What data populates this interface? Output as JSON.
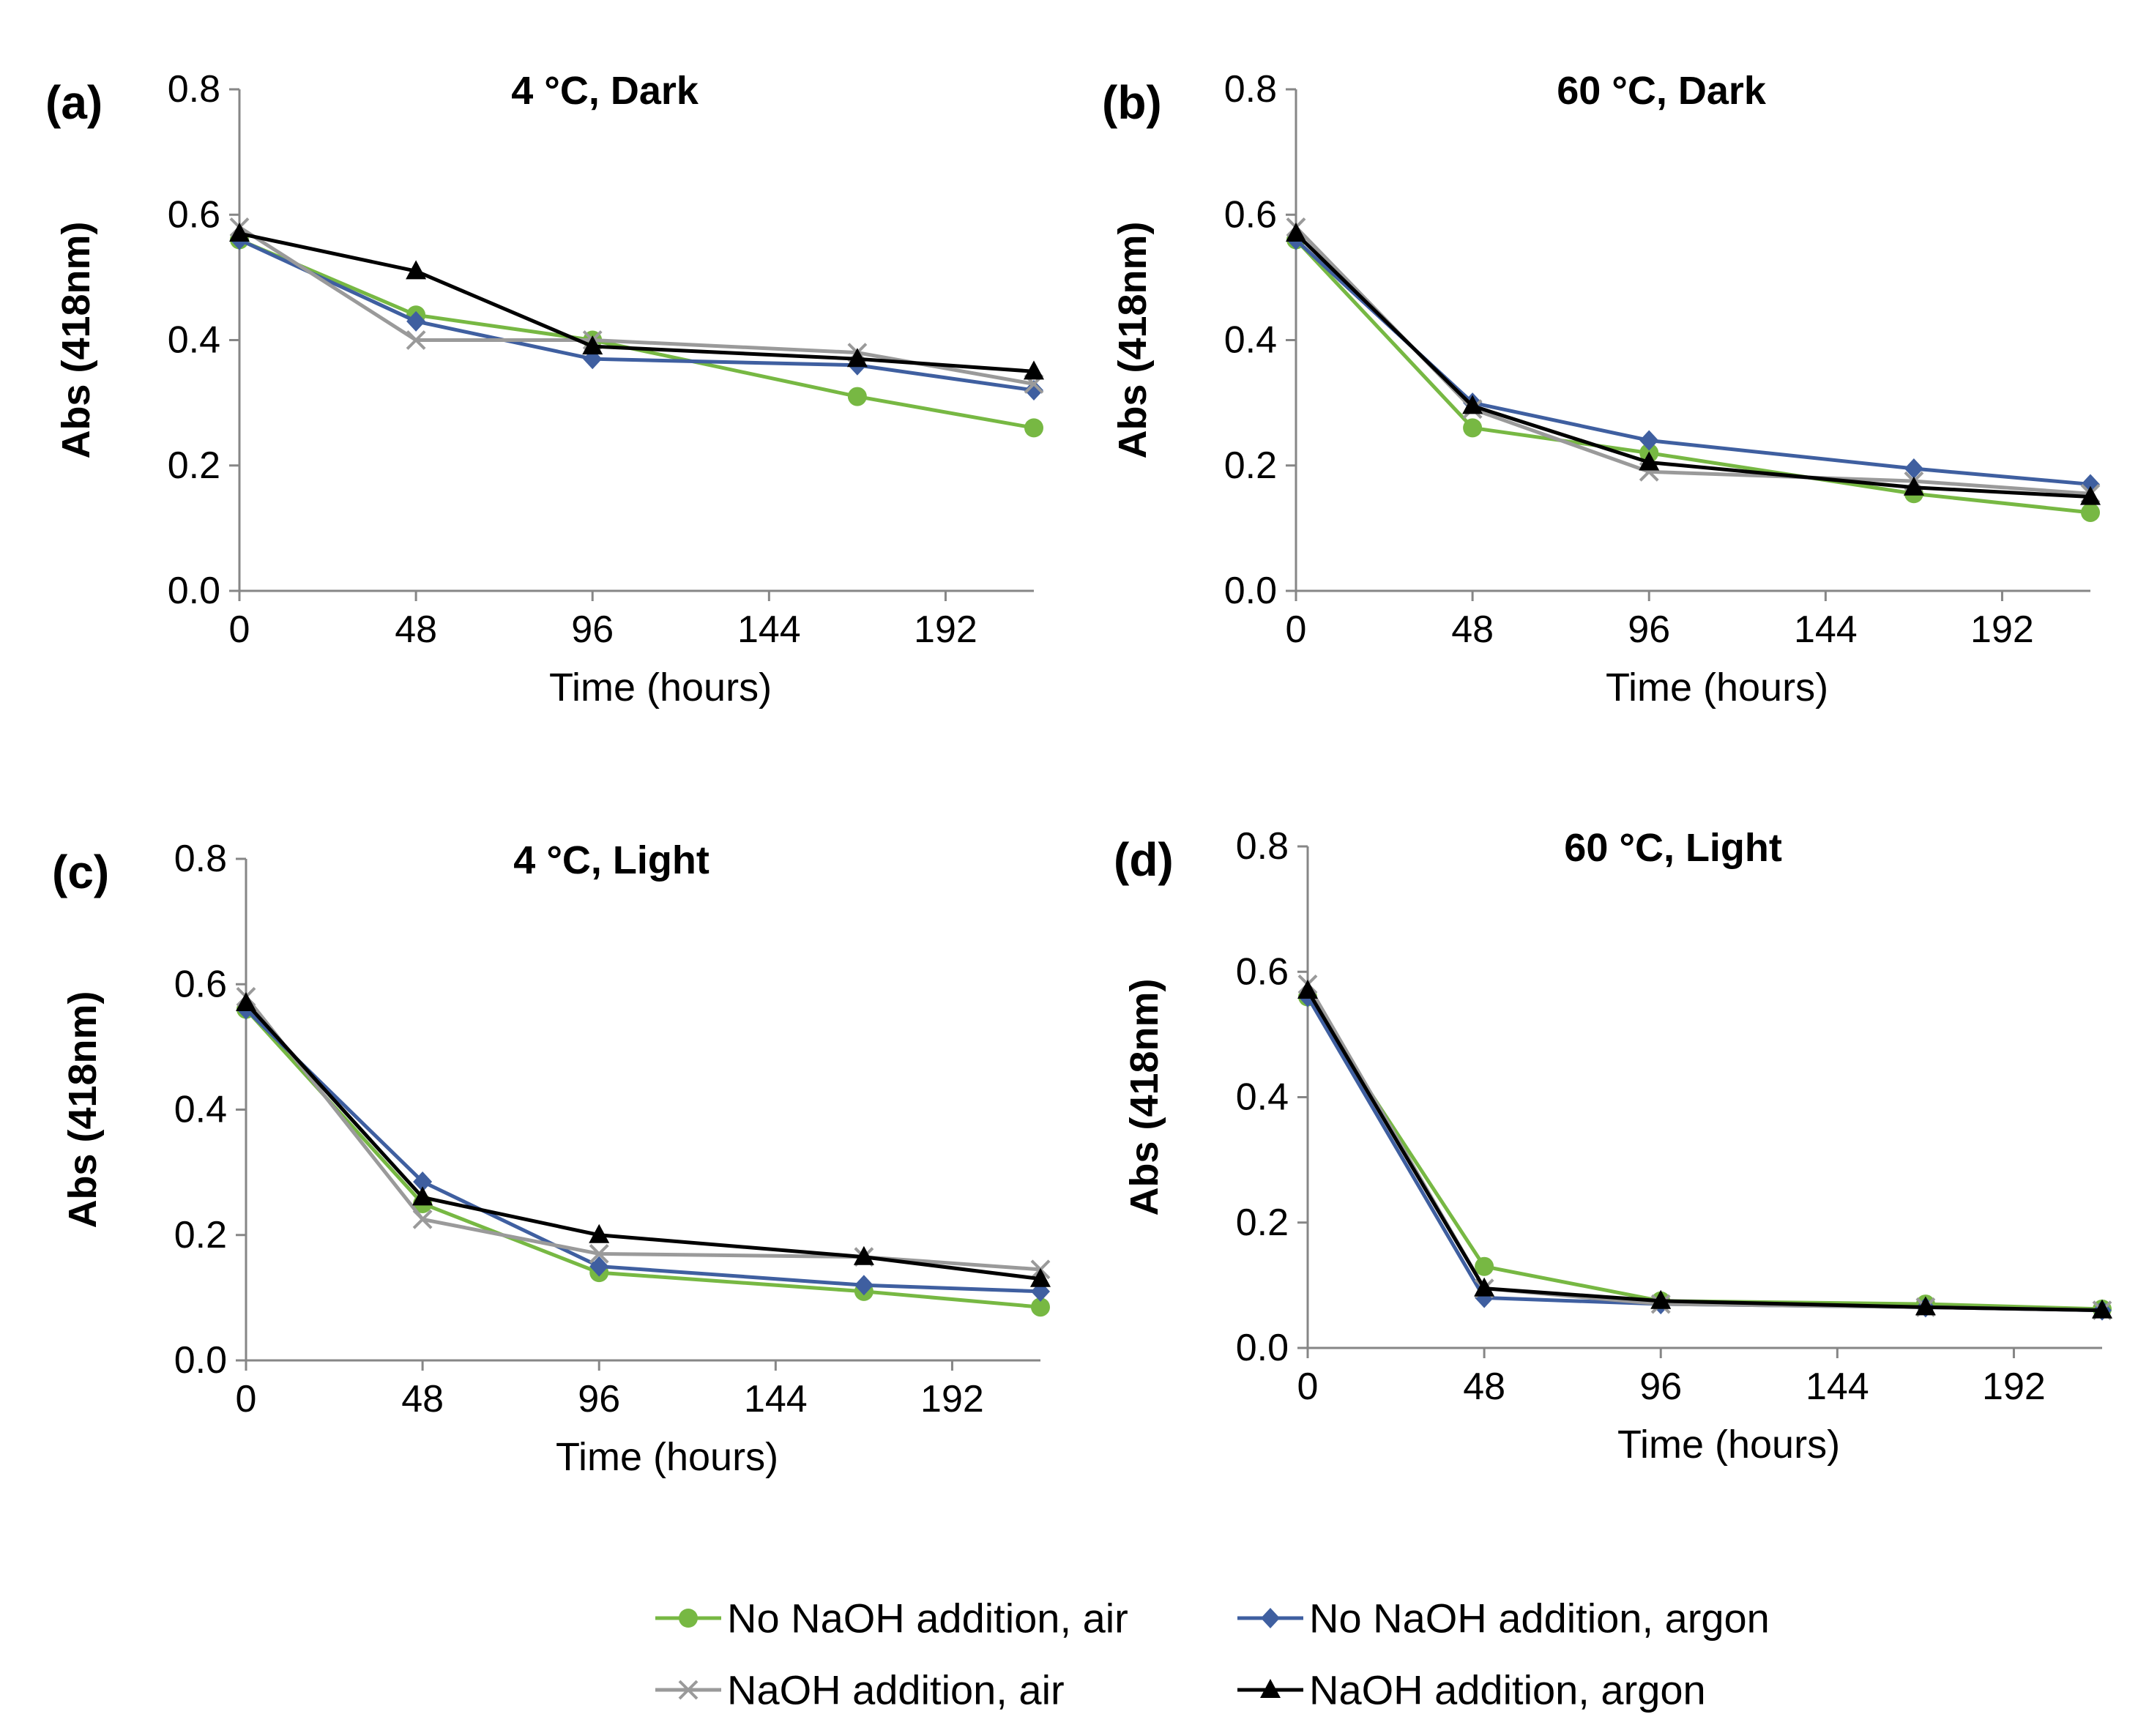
{
  "chart_data": [
    {
      "type": "line",
      "panel": "(a)",
      "title": "4 °C, Dark",
      "xlabel": "Time (hours)",
      "ylabel": "Abs (418nm)",
      "xticks": [
        "0",
        "48",
        "96",
        "144",
        "192"
      ],
      "yticks": [
        "0.0",
        "0.2",
        "0.4",
        "0.6",
        "0.8"
      ],
      "xlim": [
        0,
        216
      ],
      "ylim": [
        0,
        0.8
      ],
      "series": [
        {
          "name": "No NaOH addition, air",
          "x": [
            0,
            48,
            96,
            168,
            216
          ],
          "y": [
            0.56,
            0.44,
            0.4,
            0.31,
            0.26
          ]
        },
        {
          "name": "No NaOH addition, argon",
          "x": [
            0,
            48,
            96,
            168,
            216
          ],
          "y": [
            0.56,
            0.43,
            0.37,
            0.36,
            0.32
          ]
        },
        {
          "name": "NaOH addition, air",
          "x": [
            0,
            48,
            96,
            168,
            216
          ],
          "y": [
            0.58,
            0.4,
            0.4,
            0.38,
            0.33
          ]
        },
        {
          "name": "NaOH addition, argon",
          "x": [
            0,
            48,
            96,
            168,
            216
          ],
          "y": [
            0.57,
            0.51,
            0.39,
            0.37,
            0.35
          ]
        }
      ]
    },
    {
      "type": "line",
      "panel": "(b)",
      "title": "60 °C, Dark",
      "xlabel": "Time (hours)",
      "ylabel": "Abs (418nm)",
      "xticks": [
        "0",
        "48",
        "96",
        "144",
        "192"
      ],
      "yticks": [
        "0.0",
        "0.2",
        "0.4",
        "0.6",
        "0.8"
      ],
      "xlim": [
        0,
        216
      ],
      "ylim": [
        0,
        0.8
      ],
      "series": [
        {
          "name": "No NaOH addition, air",
          "x": [
            0,
            48,
            96,
            168,
            216
          ],
          "y": [
            0.56,
            0.26,
            0.22,
            0.155,
            0.125
          ]
        },
        {
          "name": "No NaOH addition, argon",
          "x": [
            0,
            48,
            96,
            168,
            216
          ],
          "y": [
            0.56,
            0.3,
            0.24,
            0.195,
            0.17
          ]
        },
        {
          "name": "NaOH addition, air",
          "x": [
            0,
            48,
            96,
            168,
            216
          ],
          "y": [
            0.58,
            0.29,
            0.19,
            0.175,
            0.155
          ]
        },
        {
          "name": "NaOH addition, argon",
          "x": [
            0,
            48,
            96,
            168,
            216
          ],
          "y": [
            0.57,
            0.295,
            0.205,
            0.165,
            0.15
          ]
        }
      ]
    },
    {
      "type": "line",
      "panel": "(c)",
      "title": "4 °C, Light",
      "xlabel": "Time (hours)",
      "ylabel": "Abs (418nm)",
      "xticks": [
        "0",
        "48",
        "96",
        "144",
        "192"
      ],
      "yticks": [
        "0.0",
        "0.2",
        "0.4",
        "0.6",
        "0.8"
      ],
      "xlim": [
        0,
        216
      ],
      "ylim": [
        0,
        0.8
      ],
      "series": [
        {
          "name": "No NaOH addition, air",
          "x": [
            0,
            48,
            96,
            168,
            216
          ],
          "y": [
            0.56,
            0.25,
            0.14,
            0.11,
            0.085
          ]
        },
        {
          "name": "No NaOH addition, argon",
          "x": [
            0,
            48,
            96,
            168,
            216
          ],
          "y": [
            0.56,
            0.285,
            0.15,
            0.12,
            0.11
          ]
        },
        {
          "name": "NaOH addition, air",
          "x": [
            0,
            48,
            96,
            168,
            216
          ],
          "y": [
            0.58,
            0.225,
            0.17,
            0.165,
            0.145
          ]
        },
        {
          "name": "NaOH addition, argon",
          "x": [
            0,
            48,
            96,
            168,
            216
          ],
          "y": [
            0.57,
            0.26,
            0.2,
            0.165,
            0.13
          ]
        }
      ]
    },
    {
      "type": "line",
      "panel": "(d)",
      "title": "60 °C, Light",
      "xlabel": "Time (hours)",
      "ylabel": "Abs (418nm)",
      "xticks": [
        "0",
        "48",
        "96",
        "144",
        "192"
      ],
      "yticks": [
        "0.0",
        "0.2",
        "0.4",
        "0.6",
        "0.8"
      ],
      "xlim": [
        0,
        216
      ],
      "ylim": [
        0,
        0.8
      ],
      "series": [
        {
          "name": "No NaOH addition, air",
          "x": [
            0,
            48,
            96,
            168,
            216
          ],
          "y": [
            0.56,
            0.13,
            0.075,
            0.07,
            0.062
          ]
        },
        {
          "name": "No NaOH addition, argon",
          "x": [
            0,
            48,
            96,
            168,
            216
          ],
          "y": [
            0.56,
            0.08,
            0.07,
            0.065,
            0.06
          ]
        },
        {
          "name": "NaOH addition, air",
          "x": [
            0,
            48,
            96,
            168,
            216
          ],
          "y": [
            0.58,
            0.095,
            0.07,
            0.065,
            0.06
          ]
        },
        {
          "name": "NaOH addition, argon",
          "x": [
            0,
            48,
            96,
            168,
            216
          ],
          "y": [
            0.57,
            0.095,
            0.075,
            0.065,
            0.06
          ]
        }
      ]
    }
  ],
  "legend": [
    {
      "name": "No NaOH addition, air",
      "color": "#77b843",
      "marker": "circle"
    },
    {
      "name": "No NaOH addition, argon",
      "color": "#3f5fa0",
      "marker": "diamond"
    },
    {
      "name": "NaOH addition, air",
      "color": "#9a9a9a",
      "marker": "x"
    },
    {
      "name": "NaOH addition, argon",
      "color": "#000000",
      "marker": "triangle"
    }
  ]
}
